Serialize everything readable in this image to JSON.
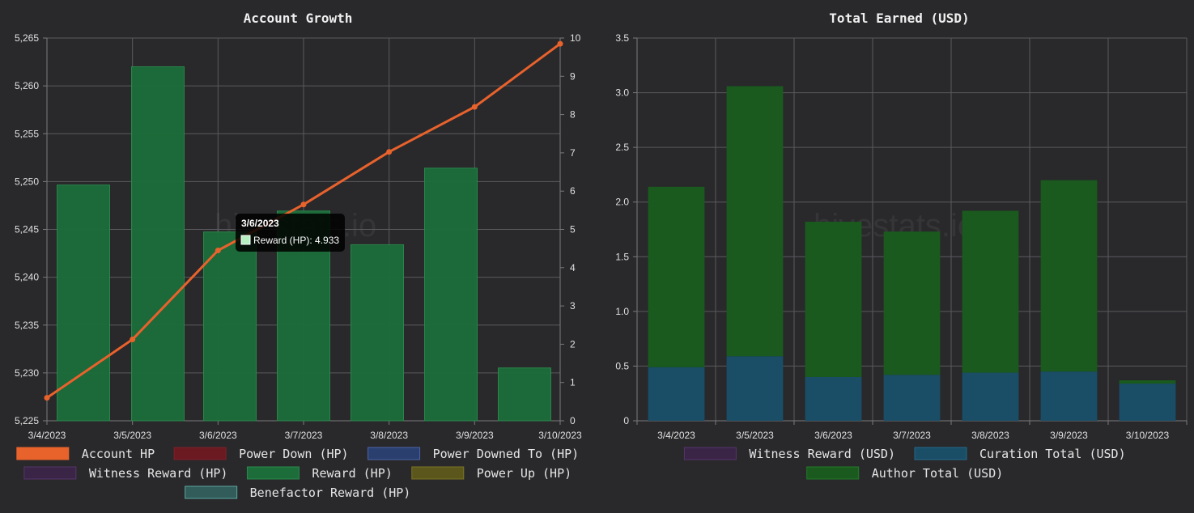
{
  "watermark": "hivestats.io",
  "chart_data": [
    {
      "type": "bar",
      "title": "Account Growth",
      "categories": [
        "3/4/2023",
        "3/5/2023",
        "3/6/2023",
        "3/7/2023",
        "3/8/2023",
        "3/9/2023",
        "3/10/2023"
      ],
      "y_left": {
        "ylim": [
          5225,
          5265
        ],
        "ticks": [
          "5,225",
          "5,230",
          "5,235",
          "5,240",
          "5,245",
          "5,250",
          "5,255",
          "5,260",
          "5,265"
        ]
      },
      "y_right": {
        "ylim": [
          0,
          10
        ],
        "ticks": [
          "0",
          "1",
          "2",
          "3",
          "4",
          "5",
          "6",
          "7",
          "8",
          "9",
          "10"
        ]
      },
      "series": [
        {
          "name": "Account HP",
          "type": "line",
          "axis": "left",
          "color": "#e8622c",
          "values": [
            5227.4,
            5233.5,
            5242.8,
            5247.6,
            5253.1,
            5257.8,
            5264.4
          ]
        },
        {
          "name": "Reward (HP)",
          "type": "bar",
          "axis": "right",
          "color": "#1c6d3a",
          "values": [
            6.16,
            9.25,
            4.933,
            5.48,
            4.6,
            6.6,
            1.38
          ]
        }
      ],
      "legend": [
        {
          "name": "Account HP",
          "color": "#e8622c",
          "border": "#e8622c"
        },
        {
          "name": "Power Down (HP)",
          "color": "#6b1a22",
          "border": "#7d2029"
        },
        {
          "name": "Power Downed To (HP)",
          "color": "#2a3f6e",
          "border": "#4a66a8"
        },
        {
          "name": "Witness Reward (HP)",
          "color": "#3a2546",
          "border": "#55356a"
        },
        {
          "name": "Reward (HP)",
          "color": "#1c6d3a",
          "border": "#2a8a4c"
        },
        {
          "name": "Power Up (HP)",
          "color": "#5b561c",
          "border": "#7a7325"
        },
        {
          "name": "Benefactor Reward (HP)",
          "color": "#325c5a",
          "border": "#5aa6a0"
        }
      ],
      "legend_placement": "bottom",
      "tooltip": {
        "title": "3/6/2023",
        "label": "Reward (HP): 4.933",
        "swatch": "#b5f0c0"
      }
    },
    {
      "type": "bar",
      "stacked": true,
      "title": "Total Earned (USD)",
      "categories": [
        "3/4/2023",
        "3/5/2023",
        "3/6/2023",
        "3/7/2023",
        "3/8/2023",
        "3/9/2023",
        "3/10/2023"
      ],
      "ylim": [
        0,
        3.5
      ],
      "y_ticks": [
        "0",
        "0.5",
        "1.0",
        "1.5",
        "2.0",
        "2.5",
        "3.0",
        "3.5"
      ],
      "series": [
        {
          "name": "Witness Reward (USD)",
          "color": "#3a2546",
          "values": [
            0,
            0,
            0,
            0,
            0,
            0,
            0
          ]
        },
        {
          "name": "Curation Total (USD)",
          "color": "#1a4d66",
          "values": [
            0.49,
            0.59,
            0.4,
            0.42,
            0.44,
            0.45,
            0.34
          ]
        },
        {
          "name": "Author Total (USD)",
          "color": "#1a5a1e",
          "values": [
            1.65,
            2.47,
            1.42,
            1.31,
            1.48,
            1.75,
            0.03
          ]
        }
      ],
      "legend": [
        {
          "name": "Witness Reward (USD)",
          "color": "#3a2546",
          "border": "#55356a"
        },
        {
          "name": "Curation Total (USD)",
          "color": "#1a4d66",
          "border": "#256a8a"
        },
        {
          "name": "Author Total (USD)",
          "color": "#1a5a1e",
          "border": "#247a2a"
        }
      ],
      "legend_placement": "bottom"
    }
  ]
}
